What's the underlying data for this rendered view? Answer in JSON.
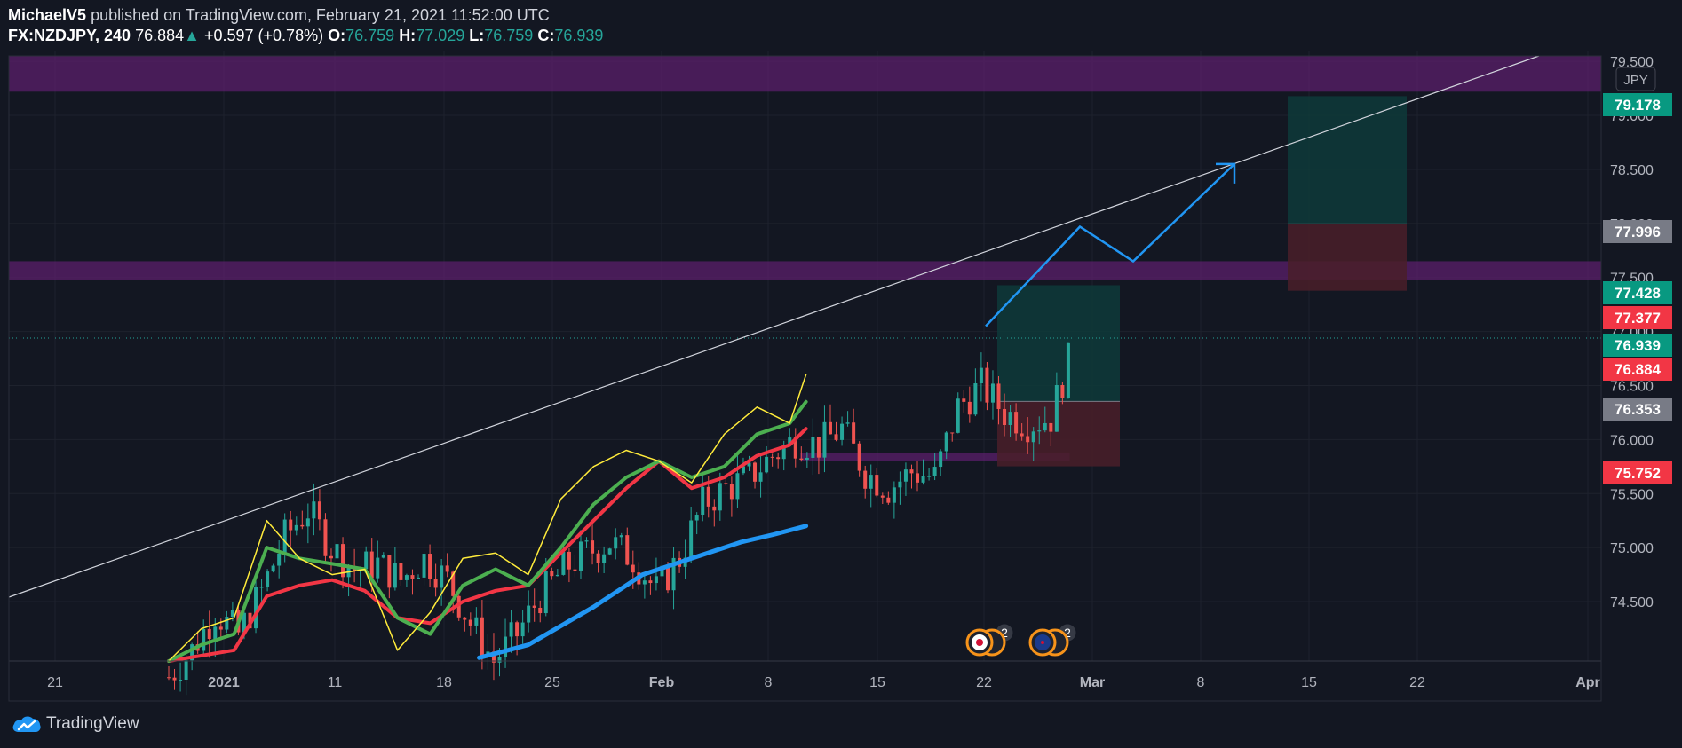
{
  "header": {
    "line1_author": "MichaelV5",
    "line1_rest": "published on TradingView.com, February 21, 2021 11:52:00 UTC",
    "symbol": "FX:NZDJPY, 240",
    "last": "76.884",
    "arrow": "▲",
    "change": "+0.597 (+0.78%)",
    "o_label": "O:",
    "o_val": "76.759",
    "h_label": "H:",
    "h_val": "77.029",
    "l_label": "L:",
    "l_val": "76.759",
    "c_label": "C:",
    "c_val": "76.939"
  },
  "footer": {
    "brand": "TradingView",
    "logo_icon": "tradingview-cloud-icon"
  },
  "colors": {
    "background": "#131722",
    "grid": "#1e222d",
    "up": "#26a69a",
    "down": "#ef5350",
    "ma_fast": "#ffeb3b",
    "ma_mid": "#4caf50",
    "ma_slow": "#f23645",
    "ma_long": "#2196f3",
    "zone": "#5b1f6b",
    "projection": "#2196f3",
    "trendline": "#d1d4dc"
  },
  "chart_data": {
    "type": "candlestick",
    "symbol": "FX:NZDJPY",
    "interval": "240",
    "currency_label": "JPY",
    "ylim": [
      73.95,
      79.6
    ],
    "y_ticks": [
      "74.500",
      "75.000",
      "75.500",
      "76.000",
      "76.500",
      "77.000",
      "77.500",
      "78.000",
      "78.500",
      "79.000",
      "79.500"
    ],
    "x_ticks": [
      "21",
      "2021",
      "11",
      "18",
      "25",
      "Feb",
      "8",
      "15",
      "22",
      "Mar",
      "8",
      "15",
      "22",
      "Apr"
    ],
    "x_ticks_bold": [
      "2021",
      "Feb",
      "Mar",
      "Apr"
    ],
    "grid": true,
    "current_price_line": 76.939,
    "price_labels": [
      {
        "value": "79.178",
        "color": "#089981"
      },
      {
        "value": "77.996",
        "color": "#787b86"
      },
      {
        "value": "77.428",
        "color": "#089981"
      },
      {
        "value": "77.377",
        "color": "#f23645"
      },
      {
        "value": "76.939",
        "color": "#089981"
      },
      {
        "value": "76.884",
        "color": "#f23645"
      },
      {
        "value": "76.353",
        "color": "#787b86"
      },
      {
        "value": "75.752",
        "color": "#f23645"
      }
    ],
    "close_series": [
      {
        "x": 0,
        "y": 73.8
      },
      {
        "x": 2,
        "y": 74.05
      },
      {
        "x": 4,
        "y": 74.4
      },
      {
        "x": 6,
        "y": 74.2
      },
      {
        "x": 8,
        "y": 74.6
      },
      {
        "x": 10,
        "y": 75.1
      },
      {
        "x": 12,
        "y": 75.35
      },
      {
        "x": 14,
        "y": 75.0
      },
      {
        "x": 16,
        "y": 74.8
      },
      {
        "x": 18,
        "y": 74.85
      },
      {
        "x": 20,
        "y": 74.7
      },
      {
        "x": 22,
        "y": 74.9
      },
      {
        "x": 24,
        "y": 74.7
      },
      {
        "x": 26,
        "y": 74.3
      },
      {
        "x": 28,
        "y": 73.95
      },
      {
        "x": 30,
        "y": 74.2
      },
      {
        "x": 32,
        "y": 74.55
      },
      {
        "x": 34,
        "y": 74.8
      },
      {
        "x": 36,
        "y": 74.95
      },
      {
        "x": 38,
        "y": 75.05
      },
      {
        "x": 40,
        "y": 74.9
      },
      {
        "x": 42,
        "y": 74.6
      },
      {
        "x": 44,
        "y": 74.9
      },
      {
        "x": 46,
        "y": 75.4
      },
      {
        "x": 48,
        "y": 75.55
      },
      {
        "x": 50,
        "y": 75.65
      },
      {
        "x": 52,
        "y": 75.85
      },
      {
        "x": 54,
        "y": 76.0
      },
      {
        "x": 56,
        "y": 75.95
      },
      {
        "x": 58,
        "y": 76.1
      },
      {
        "x": 60,
        "y": 75.7
      },
      {
        "x": 62,
        "y": 75.55
      },
      {
        "x": 64,
        "y": 75.7
      },
      {
        "x": 66,
        "y": 75.65
      },
      {
        "x": 68,
        "y": 76.3
      },
      {
        "x": 70,
        "y": 76.5
      },
      {
        "x": 72,
        "y": 76.25
      },
      {
        "x": 74,
        "y": 76.15
      },
      {
        "x": 76,
        "y": 76.2
      },
      {
        "x": 78,
        "y": 76.9
      }
    ],
    "ma_fast": [
      {
        "x": 0,
        "y": 73.7
      },
      {
        "x": 4,
        "y": 74.25
      },
      {
        "x": 8,
        "y": 74.35
      },
      {
        "x": 12,
        "y": 75.25
      },
      {
        "x": 16,
        "y": 74.9
      },
      {
        "x": 20,
        "y": 74.75
      },
      {
        "x": 24,
        "y": 74.8
      },
      {
        "x": 28,
        "y": 74.05
      },
      {
        "x": 32,
        "y": 74.4
      },
      {
        "x": 36,
        "y": 74.9
      },
      {
        "x": 40,
        "y": 74.95
      },
      {
        "x": 44,
        "y": 74.75
      },
      {
        "x": 48,
        "y": 75.45
      },
      {
        "x": 52,
        "y": 75.75
      },
      {
        "x": 56,
        "y": 75.9
      },
      {
        "x": 60,
        "y": 75.8
      },
      {
        "x": 64,
        "y": 75.6
      },
      {
        "x": 68,
        "y": 76.05
      },
      {
        "x": 72,
        "y": 76.3
      },
      {
        "x": 76,
        "y": 76.15
      },
      {
        "x": 78,
        "y": 76.6
      }
    ],
    "ma_mid": [
      {
        "x": 0,
        "y": 73.6
      },
      {
        "x": 4,
        "y": 74.1
      },
      {
        "x": 8,
        "y": 74.2
      },
      {
        "x": 12,
        "y": 75.0
      },
      {
        "x": 16,
        "y": 74.9
      },
      {
        "x": 20,
        "y": 74.85
      },
      {
        "x": 24,
        "y": 74.8
      },
      {
        "x": 28,
        "y": 74.35
      },
      {
        "x": 32,
        "y": 74.2
      },
      {
        "x": 36,
        "y": 74.65
      },
      {
        "x": 40,
        "y": 74.8
      },
      {
        "x": 44,
        "y": 74.65
      },
      {
        "x": 48,
        "y": 75.0
      },
      {
        "x": 52,
        "y": 75.4
      },
      {
        "x": 56,
        "y": 75.65
      },
      {
        "x": 60,
        "y": 75.8
      },
      {
        "x": 64,
        "y": 75.65
      },
      {
        "x": 68,
        "y": 75.75
      },
      {
        "x": 72,
        "y": 76.05
      },
      {
        "x": 76,
        "y": 76.15
      },
      {
        "x": 78,
        "y": 76.35
      }
    ],
    "ma_slow": [
      {
        "x": 0,
        "y": 73.0
      },
      {
        "x": 8,
        "y": 74.05
      },
      {
        "x": 12,
        "y": 74.55
      },
      {
        "x": 16,
        "y": 74.65
      },
      {
        "x": 20,
        "y": 74.7
      },
      {
        "x": 24,
        "y": 74.6
      },
      {
        "x": 28,
        "y": 74.35
      },
      {
        "x": 32,
        "y": 74.3
      },
      {
        "x": 36,
        "y": 74.5
      },
      {
        "x": 40,
        "y": 74.6
      },
      {
        "x": 44,
        "y": 74.65
      },
      {
        "x": 48,
        "y": 74.95
      },
      {
        "x": 52,
        "y": 75.25
      },
      {
        "x": 56,
        "y": 75.55
      },
      {
        "x": 60,
        "y": 75.8
      },
      {
        "x": 64,
        "y": 75.55
      },
      {
        "x": 68,
        "y": 75.65
      },
      {
        "x": 72,
        "y": 75.85
      },
      {
        "x": 76,
        "y": 75.95
      },
      {
        "x": 78,
        "y": 76.1
      }
    ],
    "ma_long": [
      {
        "x": 38,
        "y": 73.98
      },
      {
        "x": 44,
        "y": 74.1
      },
      {
        "x": 52,
        "y": 74.45
      },
      {
        "x": 58,
        "y": 74.75
      },
      {
        "x": 64,
        "y": 74.9
      },
      {
        "x": 70,
        "y": 75.05
      },
      {
        "x": 74,
        "y": 75.12
      },
      {
        "x": 78,
        "y": 75.2
      }
    ],
    "zones": [
      {
        "y1": 79.22,
        "y2": 79.55
      },
      {
        "y1": 77.48,
        "y2": 77.65
      },
      {
        "x1": 46,
        "x2": 89,
        "y1": 75.8,
        "y2": 75.88
      }
    ],
    "trendline": {
      "x1": -10,
      "y1": 74.58,
      "x2": 150,
      "y2": 79.6
    },
    "projection_path": [
      {
        "x": 79,
        "y": 77.05
      },
      {
        "x": 88,
        "y": 77.97
      },
      {
        "x": 93,
        "y": 77.65
      },
      {
        "x": 102,
        "y": 78.55
      }
    ],
    "positions": [
      {
        "x1": 80,
        "x2": 89,
        "entry": 76.353,
        "target": 77.428,
        "stop": 75.752
      },
      {
        "x1": 112,
        "x2": 121,
        "entry": 77.996,
        "target": 79.178,
        "stop": 77.377
      }
    ],
    "events": [
      {
        "label": "2"
      },
      {
        "label": "2"
      }
    ]
  }
}
